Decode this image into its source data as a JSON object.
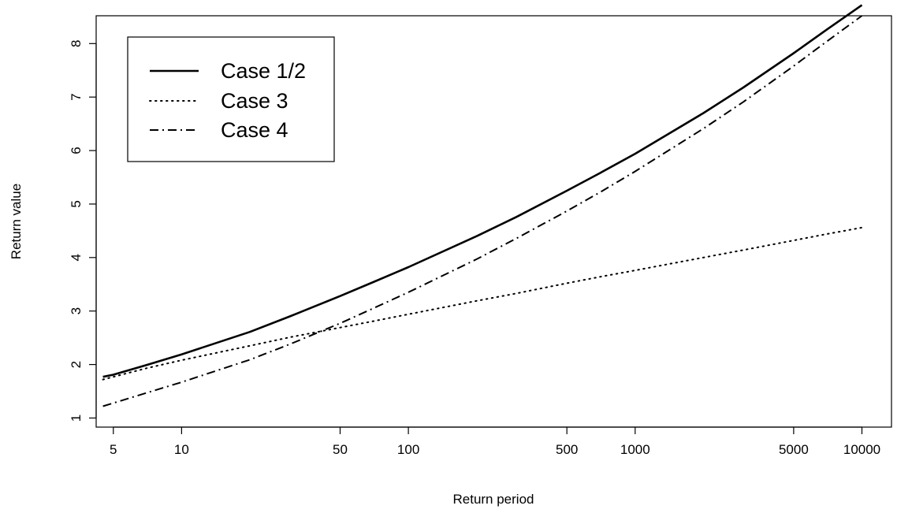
{
  "chart_data": {
    "type": "line",
    "title": "",
    "xlabel": "Return period",
    "ylabel": "Return value",
    "x_scale": "log",
    "xlim": [
      4.2,
      13500
    ],
    "ylim": [
      0.83,
      8.52
    ],
    "x_ticks": [
      5,
      10,
      50,
      100,
      500,
      1000,
      5000,
      10000
    ],
    "x_tick_labels": [
      "5",
      "10",
      "50",
      "100",
      "500",
      "1000",
      "5000",
      "10000"
    ],
    "y_ticks": [
      1,
      2,
      3,
      4,
      5,
      6,
      7,
      8
    ],
    "y_tick_labels": [
      "1",
      "2",
      "3",
      "4",
      "5",
      "6",
      "7",
      "8"
    ],
    "grid": false,
    "legend_position": "top-left",
    "x": [
      4.5,
      5,
      7,
      10,
      20,
      30,
      50,
      70,
      100,
      200,
      300,
      500,
      700,
      1000,
      2000,
      3000,
      5000,
      7000,
      10000
    ],
    "series": [
      {
        "name": "Case 1/2",
        "line_style": "solid",
        "values": [
          1.77,
          1.81,
          1.99,
          2.19,
          2.61,
          2.9,
          3.28,
          3.54,
          3.82,
          4.4,
          4.76,
          5.25,
          5.58,
          5.94,
          6.7,
          7.18,
          7.82,
          8.26,
          8.72
        ]
      },
      {
        "name": "Case 3",
        "line_style": "dotted",
        "values": [
          1.72,
          1.77,
          1.93,
          2.08,
          2.35,
          2.51,
          2.69,
          2.81,
          2.94,
          3.19,
          3.33,
          3.52,
          3.64,
          3.76,
          4.0,
          4.14,
          4.32,
          4.44,
          4.56
        ]
      },
      {
        "name": "Case 4",
        "line_style": "dash-dot",
        "values": [
          1.22,
          1.28,
          1.47,
          1.67,
          2.09,
          2.38,
          2.77,
          3.05,
          3.35,
          3.97,
          4.36,
          4.87,
          5.22,
          5.61,
          6.41,
          6.91,
          7.58,
          8.04,
          8.52
        ]
      }
    ]
  }
}
